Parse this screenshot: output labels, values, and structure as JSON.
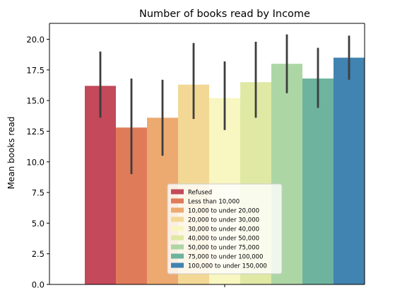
{
  "chart_data": {
    "type": "bar",
    "title": "Number of books read by Income",
    "xlabel": "",
    "ylabel": "Mean books read",
    "ylim": [
      0,
      21.3
    ],
    "yticks": [
      0.0,
      2.5,
      5.0,
      7.5,
      10.0,
      12.5,
      15.0,
      17.5,
      20.0
    ],
    "ytick_labels": [
      "0.0",
      "2.5",
      "5.0",
      "7.5",
      "10.0",
      "12.5",
      "15.0",
      "17.5",
      "20.0"
    ],
    "grid": false,
    "legend_position": "lower-center",
    "categories": [
      "Refused",
      "Less than 10,000",
      "10,000 to under 20,000",
      "20,000 to under 30,000",
      "30,000 to under 40,000",
      "40,000 to under 50,000",
      "50,000 to under 75,000",
      "75,000 to under 100,000",
      "100,000 to under 150,000"
    ],
    "values": [
      16.2,
      12.8,
      13.6,
      16.3,
      15.2,
      16.5,
      18.0,
      16.8,
      18.5
    ],
    "error_low": [
      13.6,
      9.0,
      10.5,
      13.5,
      12.6,
      13.6,
      15.6,
      14.4,
      16.7
    ],
    "error_high": [
      19.0,
      16.8,
      16.7,
      19.7,
      18.2,
      19.8,
      20.4,
      19.3,
      20.3
    ],
    "colors": [
      "#c4495a",
      "#e07b5a",
      "#ecaa70",
      "#f3d895",
      "#f8f6c1",
      "#dfe9a4",
      "#add6a5",
      "#6db39e",
      "#4183b1"
    ]
  }
}
